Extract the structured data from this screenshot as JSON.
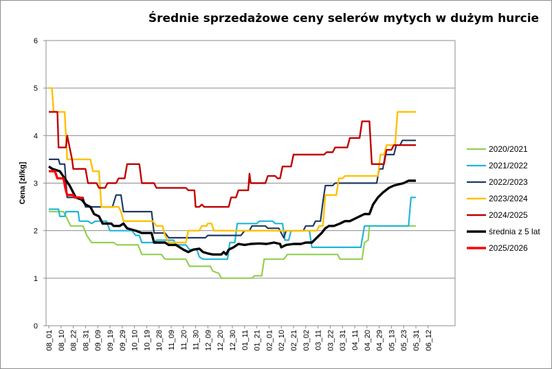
{
  "chart_data": {
    "type": "line",
    "title": "Średnie sprzedażowe ceny selerów mytych w dużym hurcie",
    "ylabel": "Cena [zł/kg]",
    "xlabel": "",
    "ylim": [
      0,
      6
    ],
    "y_ticks": [
      "0",
      "1",
      "2",
      "3",
      "4",
      "5",
      "6"
    ],
    "grid": true,
    "legend_position": "right",
    "x_labels": [
      "08_01",
      "08_10",
      "08_22",
      "08_31",
      "09_09",
      "09_19",
      "09_29",
      "10_10",
      "10_19",
      "10_28",
      "11_09",
      "11_20",
      "11_30",
      "12_09",
      "12_20",
      "12_30",
      "01_11",
      "01_21",
      "02_01",
      "02_10",
      "02_21",
      "03_02",
      "03_11",
      "03_22",
      "03_31",
      "04_11",
      "04_20",
      "04_29",
      "05_13",
      "05_23",
      "05_31",
      "06_12"
    ],
    "series": [
      {
        "name": "2020/2021",
        "color": "#92d050",
        "width": 2.2,
        "points": [
          [
            0,
            2.4
          ],
          [
            1.2,
            2.4
          ],
          [
            1.8,
            2.1
          ],
          [
            2.8,
            2.1
          ],
          [
            3.1,
            1.9
          ],
          [
            3.5,
            1.75
          ],
          [
            5.3,
            1.75
          ],
          [
            5.6,
            1.7
          ],
          [
            7.3,
            1.7
          ],
          [
            7.6,
            1.5
          ],
          [
            9.2,
            1.5
          ],
          [
            9.5,
            1.4
          ],
          [
            11.2,
            1.4
          ],
          [
            11.5,
            1.25
          ],
          [
            13.2,
            1.25
          ],
          [
            13.4,
            1.15
          ],
          [
            13.9,
            1.1
          ],
          [
            14.1,
            1.0
          ],
          [
            16.6,
            1.0
          ],
          [
            16.8,
            1.05
          ],
          [
            17.4,
            1.05
          ],
          [
            17.6,
            1.4
          ],
          [
            19.2,
            1.4
          ],
          [
            19.5,
            1.5
          ],
          [
            23.6,
            1.5
          ],
          [
            23.8,
            1.4
          ],
          [
            25.6,
            1.4
          ],
          [
            25.8,
            1.75
          ],
          [
            26.1,
            1.8
          ],
          [
            26.2,
            2.1
          ],
          [
            30,
            2.1
          ]
        ]
      },
      {
        "name": "2021/2022",
        "color": "#1fb5d8",
        "width": 2.2,
        "points": [
          [
            0,
            2.45
          ],
          [
            0.8,
            2.45
          ],
          [
            0.9,
            2.3
          ],
          [
            1.3,
            2.3
          ],
          [
            1.4,
            2.4
          ],
          [
            2.4,
            2.4
          ],
          [
            2.5,
            2.2
          ],
          [
            3.0,
            2.2
          ],
          [
            3.2,
            2.2
          ],
          [
            3.5,
            2.15
          ],
          [
            3.8,
            2.2
          ],
          [
            4.7,
            2.2
          ],
          [
            5.0,
            2.0
          ],
          [
            6.8,
            2.0
          ],
          [
            7.1,
            1.9
          ],
          [
            7.4,
            1.9
          ],
          [
            7.6,
            1.75
          ],
          [
            8.6,
            1.75
          ],
          [
            8.8,
            1.8
          ],
          [
            10.2,
            1.8
          ],
          [
            10.4,
            1.7
          ],
          [
            11.2,
            1.7
          ],
          [
            11.5,
            1.6
          ],
          [
            12.1,
            1.6
          ],
          [
            12.3,
            1.45
          ],
          [
            12.6,
            1.4
          ],
          [
            14.6,
            1.4
          ],
          [
            14.8,
            1.75
          ],
          [
            15.2,
            1.75
          ],
          [
            15.4,
            2.15
          ],
          [
            17.0,
            2.15
          ],
          [
            17.2,
            2.2
          ],
          [
            18.3,
            2.2
          ],
          [
            18.5,
            2.15
          ],
          [
            19.1,
            2.15
          ],
          [
            19.3,
            1.8
          ],
          [
            19.6,
            1.8
          ],
          [
            19.8,
            2.0
          ],
          [
            21.3,
            2.0
          ],
          [
            21.5,
            1.65
          ],
          [
            25.5,
            1.65
          ],
          [
            25.8,
            2.1
          ],
          [
            29.4,
            2.1
          ],
          [
            29.6,
            2.7
          ],
          [
            30,
            2.7
          ]
        ]
      },
      {
        "name": "2022/2023",
        "color": "#1f3864",
        "width": 2.2,
        "points": [
          [
            0,
            3.5
          ],
          [
            0.8,
            3.5
          ],
          [
            0.9,
            3.4
          ],
          [
            1.3,
            3.4
          ],
          [
            1.5,
            2.7
          ],
          [
            2.8,
            2.7
          ],
          [
            3.0,
            2.5
          ],
          [
            5.2,
            2.5
          ],
          [
            5.5,
            2.75
          ],
          [
            5.9,
            2.75
          ],
          [
            6.1,
            2.4
          ],
          [
            8.4,
            2.4
          ],
          [
            8.6,
            1.95
          ],
          [
            9.5,
            1.95
          ],
          [
            9.8,
            1.85
          ],
          [
            12.8,
            1.85
          ],
          [
            13.0,
            1.9
          ],
          [
            15.7,
            1.9
          ],
          [
            16.0,
            2.0
          ],
          [
            16.4,
            2.0
          ],
          [
            16.6,
            2.1
          ],
          [
            17.7,
            2.1
          ],
          [
            17.9,
            2.05
          ],
          [
            18.8,
            2.05
          ],
          [
            19.0,
            1.95
          ],
          [
            19.2,
            1.85
          ],
          [
            19.4,
            2.0
          ],
          [
            20.8,
            2.0
          ],
          [
            21.0,
            2.1
          ],
          [
            21.6,
            2.1
          ],
          [
            21.8,
            2.2
          ],
          [
            22.2,
            2.2
          ],
          [
            22.4,
            2.6
          ],
          [
            22.6,
            2.95
          ],
          [
            23.2,
            2.95
          ],
          [
            23.4,
            3.0
          ],
          [
            26.8,
            3.0
          ],
          [
            27.0,
            3.3
          ],
          [
            27.3,
            3.3
          ],
          [
            27.5,
            3.6
          ],
          [
            28.2,
            3.6
          ],
          [
            28.4,
            3.8
          ],
          [
            28.7,
            3.8
          ],
          [
            28.9,
            3.9
          ],
          [
            30,
            3.9
          ]
        ]
      },
      {
        "name": "2023/2024",
        "color": "#ffc000",
        "width": 2.4,
        "points": [
          [
            0,
            5.0
          ],
          [
            0.25,
            5.0
          ],
          [
            0.4,
            4.5
          ],
          [
            1.3,
            4.5
          ],
          [
            1.5,
            3.5
          ],
          [
            3.4,
            3.5
          ],
          [
            3.6,
            3.25
          ],
          [
            4.1,
            3.25
          ],
          [
            4.3,
            2.5
          ],
          [
            5.7,
            2.5
          ],
          [
            5.9,
            2.4
          ],
          [
            6.1,
            2.2
          ],
          [
            8.5,
            2.2
          ],
          [
            8.8,
            2.1
          ],
          [
            9.3,
            2.1
          ],
          [
            9.5,
            1.9
          ],
          [
            9.8,
            1.75
          ],
          [
            11.2,
            1.75
          ],
          [
            11.4,
            2.0
          ],
          [
            12.3,
            2.0
          ],
          [
            12.5,
            2.1
          ],
          [
            12.9,
            2.1
          ],
          [
            13.0,
            2.15
          ],
          [
            13.3,
            2.15
          ],
          [
            13.5,
            2.0
          ],
          [
            21.9,
            2.0
          ],
          [
            22.1,
            2.1
          ],
          [
            22.4,
            2.1
          ],
          [
            22.6,
            2.75
          ],
          [
            23.5,
            2.75
          ],
          [
            23.7,
            3.1
          ],
          [
            24.0,
            3.1
          ],
          [
            24.2,
            3.15
          ],
          [
            26.9,
            3.15
          ],
          [
            27.1,
            3.6
          ],
          [
            27.4,
            3.6
          ],
          [
            27.6,
            3.8
          ],
          [
            28.3,
            3.8
          ],
          [
            28.5,
            4.5
          ],
          [
            30,
            4.5
          ]
        ]
      },
      {
        "name": "2024/2025",
        "color": "#c00000",
        "width": 2.4,
        "points": [
          [
            0,
            4.5
          ],
          [
            0.7,
            4.5
          ],
          [
            0.8,
            3.75
          ],
          [
            1.4,
            3.75
          ],
          [
            1.5,
            4.0
          ],
          [
            1.7,
            3.75
          ],
          [
            1.9,
            3.5
          ],
          [
            2.0,
            3.3
          ],
          [
            3.0,
            3.3
          ],
          [
            3.2,
            3.0
          ],
          [
            3.9,
            3.0
          ],
          [
            4.1,
            2.9
          ],
          [
            4.6,
            2.9
          ],
          [
            4.8,
            3.0
          ],
          [
            5.5,
            3.0
          ],
          [
            5.7,
            3.1
          ],
          [
            6.2,
            3.1
          ],
          [
            6.4,
            3.4
          ],
          [
            7.4,
            3.4
          ],
          [
            7.6,
            3.0
          ],
          [
            8.6,
            3.0
          ],
          [
            8.8,
            2.9
          ],
          [
            11.2,
            2.9
          ],
          [
            11.4,
            2.85
          ],
          [
            11.9,
            2.85
          ],
          [
            12.0,
            2.5
          ],
          [
            12.3,
            2.5
          ],
          [
            12.5,
            2.55
          ],
          [
            12.7,
            2.5
          ],
          [
            14.7,
            2.5
          ],
          [
            14.9,
            2.7
          ],
          [
            15.3,
            2.7
          ],
          [
            15.5,
            2.85
          ],
          [
            16.3,
            2.85
          ],
          [
            16.4,
            3.2
          ],
          [
            16.5,
            3.0
          ],
          [
            17.7,
            3.0
          ],
          [
            17.9,
            3.15
          ],
          [
            18.5,
            3.15
          ],
          [
            18.7,
            3.1
          ],
          [
            18.9,
            3.1
          ],
          [
            19.1,
            3.35
          ],
          [
            19.8,
            3.35
          ],
          [
            20.0,
            3.6
          ],
          [
            22.5,
            3.6
          ],
          [
            22.7,
            3.65
          ],
          [
            23.2,
            3.65
          ],
          [
            23.4,
            3.75
          ],
          [
            24.4,
            3.75
          ],
          [
            24.6,
            3.95
          ],
          [
            25.4,
            3.95
          ],
          [
            25.6,
            4.3
          ],
          [
            26.2,
            4.3
          ],
          [
            26.4,
            3.4
          ],
          [
            27.4,
            3.4
          ],
          [
            27.6,
            3.7
          ],
          [
            28.0,
            3.7
          ],
          [
            28.2,
            3.8
          ],
          [
            30,
            3.8
          ]
        ]
      },
      {
        "name": "średnia z 5 lat",
        "color": "#000000",
        "width": 3.4,
        "points": [
          [
            0,
            3.35
          ],
          [
            0.3,
            3.3
          ],
          [
            0.9,
            3.25
          ],
          [
            1.3,
            3.1
          ],
          [
            1.7,
            2.95
          ],
          [
            2.2,
            2.7
          ],
          [
            2.7,
            2.65
          ],
          [
            3.0,
            2.55
          ],
          [
            3.4,
            2.5
          ],
          [
            3.7,
            2.35
          ],
          [
            4.1,
            2.3
          ],
          [
            4.4,
            2.15
          ],
          [
            5.1,
            2.15
          ],
          [
            5.3,
            2.1
          ],
          [
            5.8,
            2.1
          ],
          [
            6.1,
            2.15
          ],
          [
            6.4,
            2.05
          ],
          [
            7.1,
            2.0
          ],
          [
            7.6,
            1.95
          ],
          [
            8.4,
            1.95
          ],
          [
            8.6,
            1.75
          ],
          [
            9.5,
            1.75
          ],
          [
            9.8,
            1.7
          ],
          [
            10.4,
            1.7
          ],
          [
            10.7,
            1.65
          ],
          [
            11.0,
            1.6
          ],
          [
            11.4,
            1.55
          ],
          [
            11.8,
            1.6
          ],
          [
            12.3,
            1.62
          ],
          [
            12.6,
            1.55
          ],
          [
            13.0,
            1.52
          ],
          [
            13.4,
            1.5
          ],
          [
            14.1,
            1.5
          ],
          [
            14.3,
            1.55
          ],
          [
            14.5,
            1.5
          ],
          [
            14.7,
            1.6
          ],
          [
            15.1,
            1.65
          ],
          [
            15.5,
            1.72
          ],
          [
            16.0,
            1.7
          ],
          [
            16.5,
            1.72
          ],
          [
            17.2,
            1.73
          ],
          [
            17.8,
            1.72
          ],
          [
            18.4,
            1.75
          ],
          [
            18.9,
            1.72
          ],
          [
            19.0,
            1.65
          ],
          [
            19.4,
            1.7
          ],
          [
            20.0,
            1.72
          ],
          [
            20.6,
            1.72
          ],
          [
            21.0,
            1.75
          ],
          [
            21.5,
            1.75
          ],
          [
            21.9,
            1.85
          ],
          [
            22.3,
            1.95
          ],
          [
            22.6,
            2.05
          ],
          [
            22.9,
            2.1
          ],
          [
            23.3,
            2.1
          ],
          [
            23.8,
            2.15
          ],
          [
            24.2,
            2.2
          ],
          [
            24.6,
            2.2
          ],
          [
            25.0,
            2.25
          ],
          [
            25.4,
            2.3
          ],
          [
            25.8,
            2.35
          ],
          [
            26.2,
            2.35
          ],
          [
            26.5,
            2.55
          ],
          [
            26.9,
            2.7
          ],
          [
            27.3,
            2.8
          ],
          [
            27.8,
            2.9
          ],
          [
            28.2,
            2.95
          ],
          [
            29.0,
            3.0
          ],
          [
            29.4,
            3.05
          ],
          [
            30,
            3.05
          ]
        ]
      },
      {
        "name": "2025/2026",
        "color": "#ff0000",
        "width": 3.4,
        "points": [
          [
            0,
            3.25
          ],
          [
            0.5,
            3.25
          ],
          [
            0.7,
            3.1
          ],
          [
            1.2,
            3.1
          ],
          [
            1.35,
            2.9
          ],
          [
            1.5,
            2.75
          ],
          [
            2.0,
            2.75
          ],
          [
            2.1,
            2.7
          ],
          [
            2.5,
            2.7
          ],
          [
            2.7,
            2.68
          ],
          [
            2.8,
            2.7
          ]
        ]
      }
    ]
  }
}
